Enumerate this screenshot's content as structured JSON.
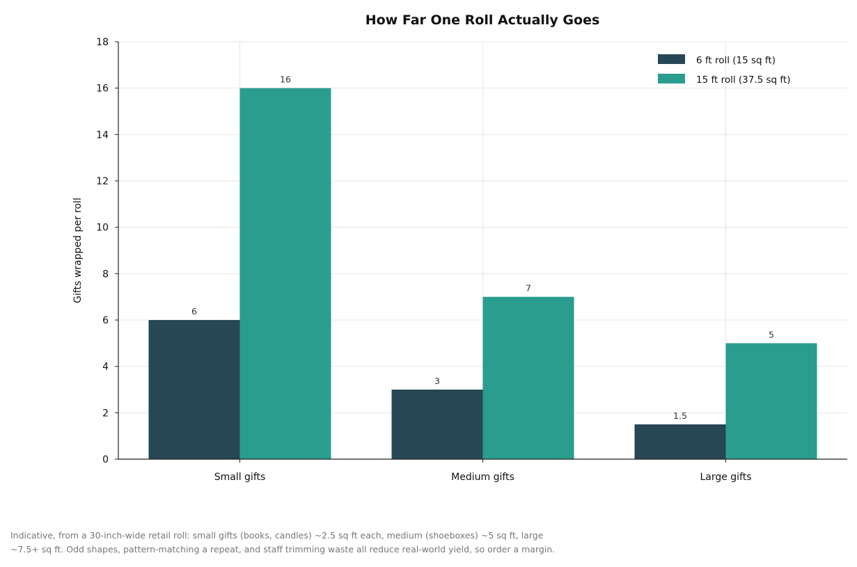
{
  "chart_data": {
    "type": "bar",
    "title": "How Far One Roll Actually Goes",
    "xlabel": "",
    "ylabel": "Gifts wrapped per roll",
    "ylim": [
      0,
      18
    ],
    "yticks": [
      0,
      2,
      4,
      6,
      8,
      10,
      12,
      14,
      16,
      18
    ],
    "categories": [
      "Small gifts",
      "Medium gifts",
      "Large gifts"
    ],
    "series": [
      {
        "name": "6 ft roll (15 sq ft)",
        "color": "#274754",
        "values": [
          6,
          3,
          1.5
        ],
        "labels": [
          "6",
          "3",
          "1.5"
        ]
      },
      {
        "name": "15 ft roll (37.5 sq ft)",
        "color": "#2a9d8f",
        "values": [
          16,
          7,
          5
        ],
        "labels": [
          "16",
          "7",
          "5"
        ]
      }
    ],
    "grid": true,
    "legend_position": "top-right"
  },
  "footnote": "Indicative, from a 30-inch-wide retail roll: small gifts (books, candles) ~2.5 sq ft each, medium (shoeboxes) ~5 sq ft, large\n~7.5+ sq ft. Odd shapes, pattern-matching a repeat, and staff trimming waste all reduce real-world yield, so order a margin."
}
